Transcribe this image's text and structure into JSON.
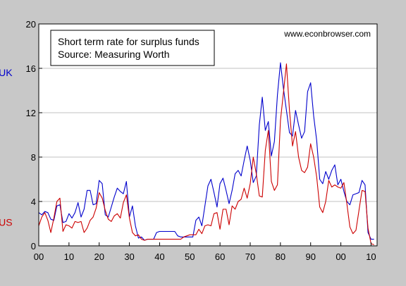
{
  "chart_data": {
    "type": "line",
    "title_lines": [
      "Short term rate for surplus funds",
      "Source: Measuring Worth"
    ],
    "watermark": "www.econbrowser.com",
    "xlabel": "",
    "ylabel": "",
    "xlim": [
      1900,
      2012
    ],
    "ylim": [
      0,
      20
    ],
    "x_ticks": [
      1900,
      1910,
      1920,
      1930,
      1940,
      1950,
      1960,
      1970,
      1980,
      1990,
      2000,
      2010
    ],
    "x_tick_labels": [
      "00",
      "10",
      "20",
      "30",
      "40",
      "50",
      "60",
      "70",
      "80",
      "90",
      "00",
      "10"
    ],
    "y_ticks": [
      0,
      4,
      8,
      12,
      16,
      20
    ],
    "y_tick_labels": [
      "0",
      "4",
      "8",
      "12",
      "16",
      "20"
    ],
    "grid": true,
    "legend_position": "top-left",
    "series_colors": {
      "UK": "#0000cc",
      "US": "#cc0000"
    },
    "series": [
      {
        "name": "UK",
        "label_at": [
          1889,
          15.3
        ],
        "x": [
          1900,
          1901,
          1902,
          1903,
          1904,
          1905,
          1906,
          1907,
          1908,
          1909,
          1910,
          1911,
          1912,
          1913,
          1914,
          1915,
          1916,
          1917,
          1918,
          1919,
          1920,
          1921,
          1922,
          1923,
          1924,
          1925,
          1926,
          1927,
          1928,
          1929,
          1930,
          1931,
          1932,
          1933,
          1934,
          1935,
          1936,
          1937,
          1938,
          1939,
          1940,
          1941,
          1942,
          1943,
          1944,
          1945,
          1946,
          1947,
          1948,
          1949,
          1950,
          1951,
          1952,
          1953,
          1954,
          1955,
          1956,
          1957,
          1958,
          1959,
          1960,
          1961,
          1962,
          1963,
          1964,
          1965,
          1966,
          1967,
          1968,
          1969,
          1970,
          1971,
          1972,
          1973,
          1974,
          1975,
          1976,
          1977,
          1978,
          1979,
          1980,
          1981,
          1982,
          1983,
          1984,
          1985,
          1986,
          1987,
          1988,
          1989,
          1990,
          1991,
          1992,
          1993,
          1994,
          1995,
          1996,
          1997,
          1998,
          1999,
          2000,
          2001,
          2002,
          2003,
          2004,
          2005,
          2006,
          2007,
          2008,
          2009,
          2010,
          2011
        ],
        "y": [
          3.0,
          2.8,
          3.1,
          3.0,
          2.4,
          2.3,
          3.6,
          3.7,
          2.1,
          2.2,
          2.9,
          2.5,
          3.0,
          3.9,
          2.6,
          3.3,
          5.0,
          5.0,
          3.7,
          3.8,
          5.9,
          5.6,
          2.8,
          2.6,
          3.5,
          4.4,
          5.2,
          4.9,
          4.7,
          5.8,
          2.6,
          3.6,
          1.8,
          0.7,
          0.8,
          0.5,
          0.6,
          0.6,
          0.6,
          1.2,
          1.3,
          1.3,
          1.3,
          1.3,
          1.3,
          1.3,
          0.9,
          0.8,
          0.8,
          0.8,
          0.8,
          0.8,
          2.3,
          2.6,
          1.8,
          3.6,
          5.4,
          6.0,
          4.8,
          3.5,
          5.6,
          6.1,
          5.0,
          3.8,
          5.0,
          6.5,
          6.8,
          6.3,
          7.7,
          9.0,
          7.7,
          5.7,
          6.3,
          10.9,
          13.4,
          10.4,
          11.2,
          8.1,
          9.4,
          13.6,
          16.5,
          14.2,
          12.2,
          10.2,
          9.9,
          12.2,
          10.9,
          9.7,
          10.3,
          13.9,
          14.7,
          11.7,
          9.5,
          6.0,
          5.6,
          6.7,
          6.0,
          6.8,
          7.3,
          5.5,
          6.0,
          4.9,
          4.0,
          3.7,
          4.6,
          4.7,
          4.8,
          5.9,
          5.5,
          1.2,
          0.6,
          0.6
        ]
      },
      {
        "name": "US",
        "label_at": [
          1889,
          1.8
        ],
        "x": [
          1900,
          1901,
          1902,
          1903,
          1904,
          1905,
          1906,
          1907,
          1908,
          1909,
          1910,
          1911,
          1912,
          1913,
          1914,
          1915,
          1916,
          1917,
          1918,
          1919,
          1920,
          1921,
          1922,
          1923,
          1924,
          1925,
          1926,
          1927,
          1928,
          1929,
          1930,
          1931,
          1932,
          1933,
          1934,
          1935,
          1936,
          1937,
          1938,
          1939,
          1940,
          1941,
          1942,
          1943,
          1944,
          1945,
          1946,
          1947,
          1948,
          1949,
          1950,
          1951,
          1952,
          1953,
          1954,
          1955,
          1956,
          1957,
          1958,
          1959,
          1960,
          1961,
          1962,
          1963,
          1964,
          1965,
          1966,
          1967,
          1968,
          1969,
          1970,
          1971,
          1972,
          1973,
          1974,
          1975,
          1976,
          1977,
          1978,
          1979,
          1980,
          1981,
          1982,
          1983,
          1984,
          1985,
          1986,
          1987,
          1988,
          1989,
          1990,
          1991,
          1992,
          1993,
          1994,
          1995,
          1996,
          1997,
          1998,
          1999,
          2000,
          2001,
          2002,
          2003,
          2004,
          2005,
          2006,
          2007,
          2008,
          2009,
          2010,
          2011
        ],
        "y": [
          1.8,
          2.6,
          3.0,
          2.3,
          1.2,
          2.5,
          4.0,
          4.3,
          1.3,
          1.9,
          1.8,
          1.6,
          2.2,
          2.1,
          2.2,
          1.2,
          1.6,
          2.3,
          2.6,
          3.4,
          4.8,
          4.3,
          3.2,
          2.4,
          2.2,
          2.7,
          2.9,
          2.5,
          3.9,
          4.6,
          2.5,
          1.2,
          0.9,
          1.0,
          0.6,
          0.5,
          0.6,
          0.6,
          0.6,
          0.6,
          0.6,
          0.6,
          0.6,
          0.6,
          0.6,
          0.6,
          0.6,
          0.6,
          0.8,
          0.9,
          1.0,
          1.0,
          1.0,
          1.5,
          1.1,
          1.8,
          1.9,
          1.8,
          2.9,
          3.0,
          1.5,
          3.3,
          3.3,
          1.9,
          3.6,
          3.3,
          4.0,
          4.2,
          5.2,
          4.3,
          5.6,
          8.0,
          6.5,
          4.5,
          4.4,
          8.6,
          10.4,
          5.8,
          5.0,
          5.5,
          11.3,
          13.8,
          16.4,
          12.2,
          9.0,
          10.3,
          8.0,
          6.8,
          6.6,
          7.1,
          9.2,
          8.0,
          6.2,
          3.5,
          3.0,
          4.0,
          5.9,
          5.3,
          5.5,
          5.3,
          5.2,
          5.7,
          3.8,
          1.7,
          1.1,
          1.4,
          3.2,
          5.0,
          4.9,
          1.6,
          0.2,
          0.1
        ]
      }
    ]
  }
}
